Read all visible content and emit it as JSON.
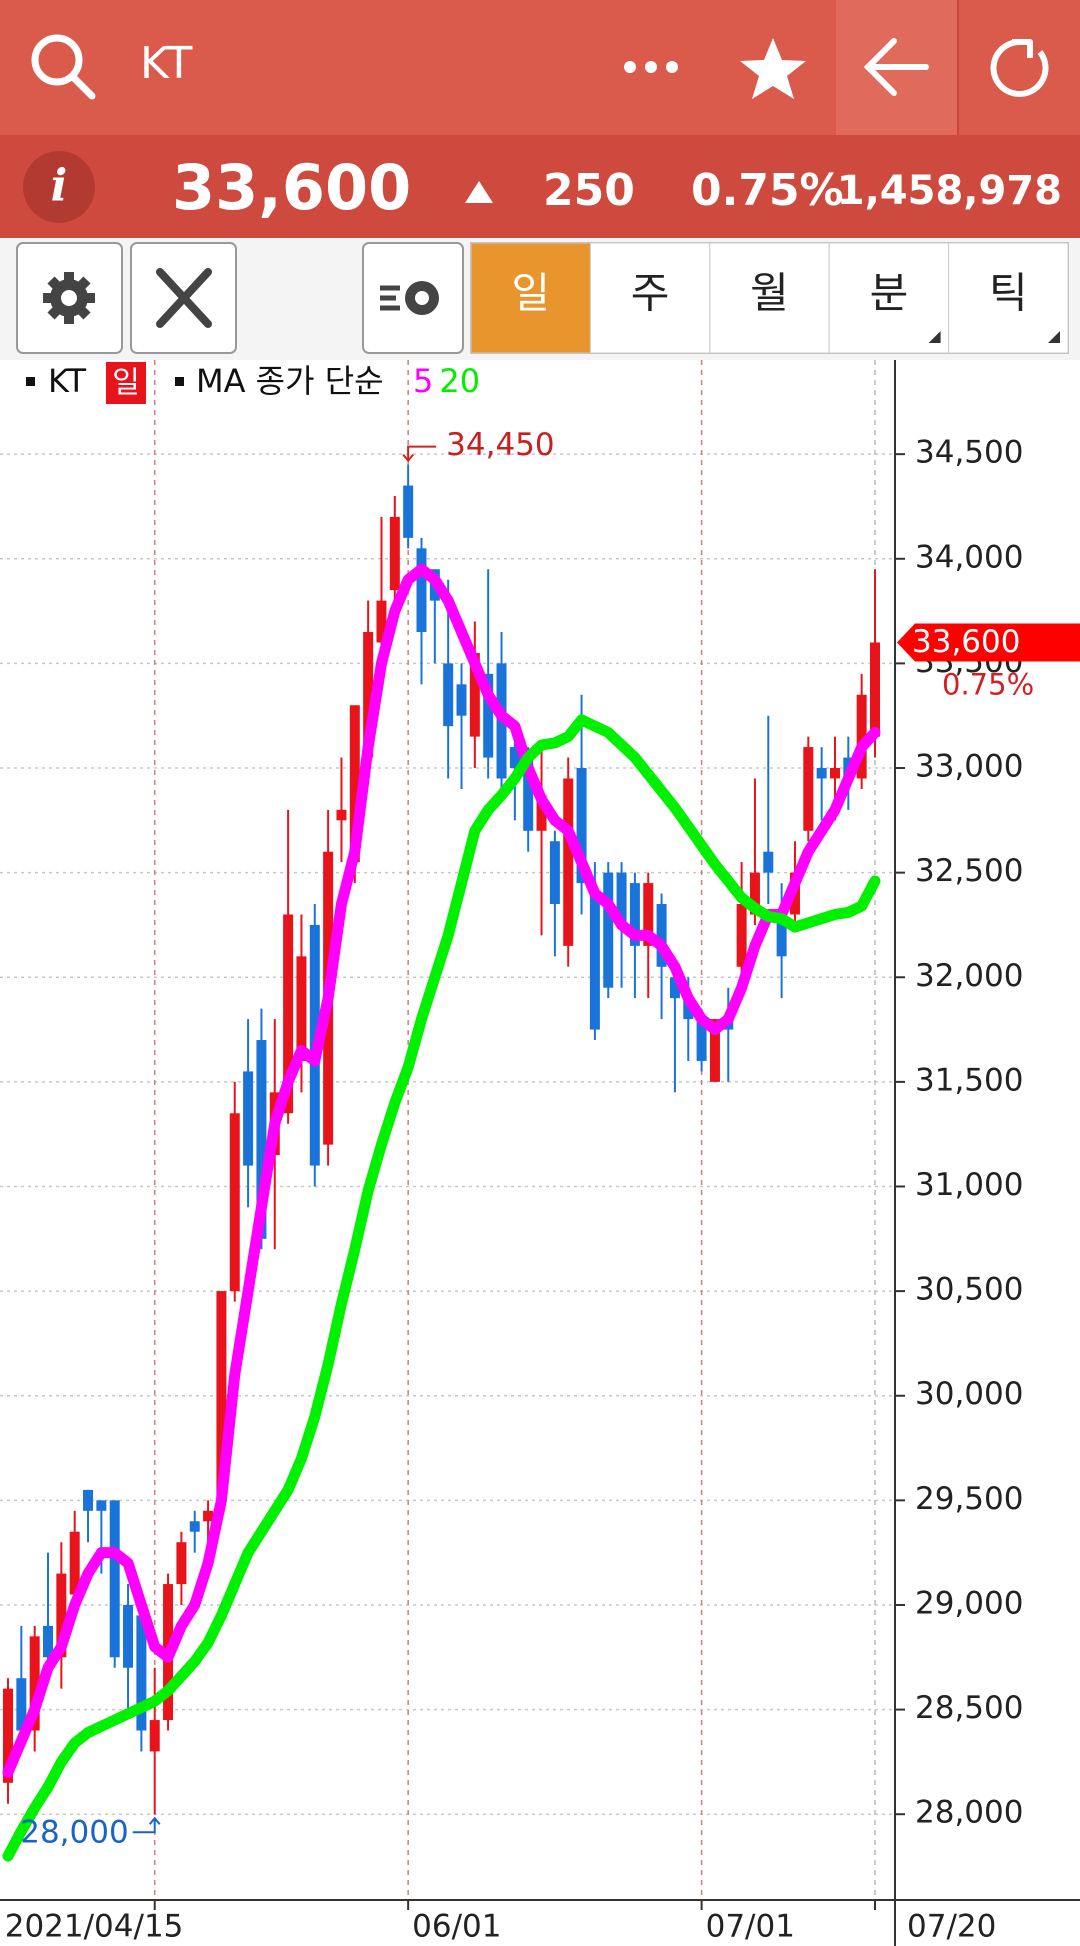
{
  "header": {
    "search_text": "KT",
    "info": "i",
    "price": "33,600",
    "change": "250",
    "change_pct": "0.75%",
    "volume": "1,458,978"
  },
  "tabs": [
    "일",
    "주",
    "월",
    "분",
    "틱"
  ],
  "chart_data": {
    "type": "candlestick",
    "legend": {
      "name": "KT",
      "period": "일",
      "ma_label": "MA 종가 단순"
    },
    "categories": [
      null,
      null,
      null,
      null,
      null,
      null,
      null,
      null,
      null,
      null,
      null,
      "2021/04/15",
      null,
      null,
      null,
      null,
      null,
      null,
      null,
      null,
      null,
      null,
      null,
      null,
      null,
      null,
      null,
      null,
      null,
      null,
      "06/01",
      null,
      null,
      null,
      null,
      null,
      null,
      null,
      null,
      null,
      null,
      null,
      null,
      null,
      null,
      null,
      null,
      null,
      null,
      null,
      null,
      null,
      "07/01",
      null,
      null,
      null,
      null,
      null,
      null,
      null,
      null,
      null,
      null,
      null,
      null,
      "07/20"
    ],
    "open": [
      28150,
      28650,
      28400,
      28900,
      28750,
      29050,
      29550,
      29500,
      29500,
      29000,
      28950,
      28300,
      28450,
      29100,
      29400,
      29400,
      29520,
      30500,
      31550,
      31700,
      31150,
      31350,
      31600,
      32250,
      31200,
      32750,
      32550,
      33050,
      33600,
      33850,
      34350,
      34050,
      33950,
      33500,
      33400,
      33150,
      33450,
      33500,
      33100,
      33050,
      32700,
      32650,
      32150,
      33000,
      32400,
      32500,
      32500,
      32450,
      32150,
      32350,
      32000,
      31900,
      31800,
      31500,
      31800,
      32050,
      32300,
      32600,
      32300,
      32300,
      32700,
      33000,
      32950,
      33050,
      32950,
      33150
    ],
    "high": [
      28650,
      28900,
      28900,
      29250,
      29300,
      29450,
      29550,
      29500,
      29500,
      29100,
      29000,
      28700,
      29150,
      29350,
      29450,
      29500,
      30500,
      31500,
      31800,
      31850,
      31800,
      32800,
      32300,
      32350,
      32800,
      33050,
      33300,
      33800,
      34200,
      34300,
      34450,
      34100,
      33950,
      33900,
      33500,
      33700,
      33950,
      33650,
      33200,
      33100,
      33100,
      32700,
      33050,
      33350,
      32550,
      32550,
      32550,
      32500,
      32500,
      32400,
      32050,
      32000,
      31850,
      31800,
      31950,
      32550,
      32950,
      33250,
      32450,
      32650,
      33150,
      33100,
      33150,
      33150,
      33450,
      33950
    ],
    "low": [
      28050,
      28300,
      28300,
      28700,
      28600,
      28950,
      29300,
      29150,
      28700,
      28500,
      28300,
      28000,
      28400,
      29000,
      29250,
      29200,
      29450,
      30450,
      30900,
      30700,
      30700,
      31300,
      31450,
      31000,
      31100,
      32550,
      32450,
      32950,
      33500,
      33800,
      34050,
      33400,
      33500,
      32950,
      32900,
      33000,
      32950,
      32900,
      32750,
      32600,
      32200,
      32100,
      32050,
      32300,
      31700,
      31900,
      31950,
      31900,
      31900,
      31800,
      31450,
      31600,
      31550,
      31500,
      31500,
      31950,
      32250,
      32350,
      31900,
      32250,
      32650,
      32750,
      32750,
      32800,
      32900,
      33050
    ],
    "close": [
      28600,
      28400,
      28850,
      28750,
      29150,
      29350,
      29450,
      29450,
      28750,
      28700,
      28400,
      28450,
      29100,
      29300,
      29350,
      29450,
      30500,
      31350,
      31100,
      30750,
      31450,
      32300,
      32100,
      31100,
      32600,
      32800,
      33300,
      33650,
      33800,
      34200,
      34100,
      33650,
      33800,
      33200,
      33250,
      33550,
      33050,
      32950,
      33000,
      32700,
      32870,
      32350,
      32950,
      32450,
      31750,
      31950,
      32250,
      32150,
      32450,
      32050,
      31900,
      31800,
      31600,
      31800,
      31750,
      32350,
      32500,
      32500,
      32100,
      32500,
      33100,
      32950,
      33000,
      32950,
      33350,
      33600
    ],
    "up_color": "#e8141c",
    "down_color": "#1a73d9",
    "series": [
      {
        "name": "5",
        "color": "#ff00ff",
        "values": [
          28200,
          28350,
          28500,
          28700,
          28800,
          29000,
          29150,
          29250,
          29250,
          29200,
          29000,
          28800,
          28750,
          28900,
          29000,
          29200,
          29500,
          30100,
          30500,
          30900,
          31300,
          31500,
          31650,
          31600,
          31900,
          32350,
          32600,
          33100,
          33500,
          33750,
          33900,
          33950,
          33900,
          33800,
          33650,
          33500,
          33350,
          33250,
          33200,
          33000,
          32850,
          32750,
          32700,
          32550,
          32400,
          32350,
          32250,
          32200,
          32200,
          32150,
          32050,
          31900,
          31800,
          31750,
          31800,
          31950,
          32150,
          32300,
          32300,
          32450,
          32600,
          32700,
          32800,
          32950,
          33100,
          33170
        ]
      },
      {
        "name": "20",
        "color": "#00f000",
        "values": [
          27800,
          27920,
          28030,
          28130,
          28250,
          28340,
          28390,
          28420,
          28450,
          28480,
          28510,
          28540,
          28590,
          28660,
          28730,
          28820,
          28950,
          29100,
          29250,
          29350,
          29450,
          29550,
          29700,
          29900,
          30150,
          30440,
          30700,
          30980,
          31200,
          31400,
          31570,
          31800,
          32000,
          32200,
          32450,
          32700,
          32800,
          32870,
          32950,
          33050,
          33110,
          33120,
          33150,
          33230,
          33200,
          33170,
          33110,
          33050,
          32970,
          32890,
          32810,
          32720,
          32630,
          32540,
          32460,
          32380,
          32330,
          32290,
          32280,
          32240,
          32260,
          32280,
          32300,
          32310,
          32340,
          32460
        ]
      }
    ],
    "ylim": [
      27590,
      34950
    ],
    "yticks": [
      {
        "value": 28000,
        "label": "28,000"
      },
      {
        "value": 28500,
        "label": "28,500"
      },
      {
        "value": 29000,
        "label": "29,000"
      },
      {
        "value": 29500,
        "label": "29,500"
      },
      {
        "value": 30000,
        "label": "30,000"
      },
      {
        "value": 30500,
        "label": "30,500"
      },
      {
        "value": 31000,
        "label": "31,000"
      },
      {
        "value": 31500,
        "label": "31,500"
      },
      {
        "value": 32000,
        "label": "32,000"
      },
      {
        "value": 32500,
        "label": "32,500"
      },
      {
        "value": 33000,
        "label": "33,000"
      },
      {
        "value": 33500,
        "label": "33,500"
      },
      {
        "value": 34000,
        "label": "34,000"
      },
      {
        "value": 34500,
        "label": "34,500"
      }
    ],
    "grid": true,
    "high_label": "34,450",
    "low_label": "28,000",
    "last_label": "33,600",
    "last_change_label": "0.75%"
  }
}
